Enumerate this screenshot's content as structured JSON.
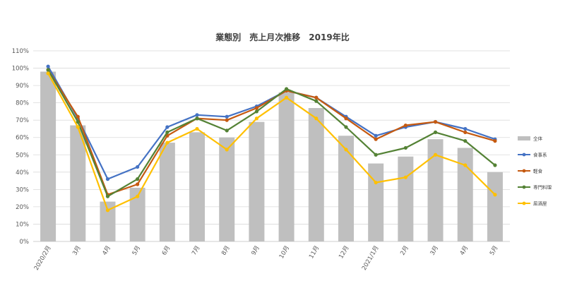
{
  "chart_data": {
    "type": "bar",
    "title": "業態別　売上月次推移　2019年比",
    "xlabel": "",
    "ylabel": "",
    "ylim": [
      0,
      110
    ],
    "ytick_step": 10,
    "yticks": [
      "0%",
      "10%",
      "20%",
      "30%",
      "40%",
      "50%",
      "60%",
      "70%",
      "80%",
      "90%",
      "100%",
      "110%"
    ],
    "grid": true,
    "legend_position": "right",
    "categories": [
      "2020/2月",
      "3月",
      "4月",
      "5月",
      "6月",
      "7月",
      "8月",
      "9月",
      "10月",
      "11月",
      "12月",
      "2021/1月",
      "2月",
      "3月",
      "4月",
      "5月"
    ],
    "series": [
      {
        "name": "全体",
        "kind": "bar",
        "color": "#bfbfbf",
        "values": [
          98,
          67,
          23,
          31,
          57,
          63,
          60,
          69,
          86,
          77,
          61,
          45,
          49,
          59,
          54,
          40
        ]
      },
      {
        "name": "食事系",
        "kind": "line",
        "color": "#4472c4",
        "values": [
          101,
          71,
          36,
          43,
          66,
          73,
          72,
          78,
          87,
          83,
          72,
          61,
          66,
          69,
          65,
          59
        ]
      },
      {
        "name": "軽食",
        "kind": "line",
        "color": "#c55a11",
        "values": [
          99,
          72,
          27,
          33,
          61,
          71,
          70,
          77,
          87,
          83,
          71,
          59,
          67,
          69,
          63,
          58
        ]
      },
      {
        "name": "専門料理",
        "kind": "line",
        "color": "#548235",
        "values": [
          99,
          69,
          26,
          36,
          63,
          71,
          64,
          75,
          88,
          81,
          66,
          50,
          54,
          63,
          58,
          44
        ]
      },
      {
        "name": "居酒屋",
        "kind": "line",
        "color": "#ffc000",
        "values": [
          97,
          66,
          18,
          26,
          57,
          65,
          53,
          71,
          83,
          71,
          53,
          34,
          37,
          50,
          44,
          27
        ]
      }
    ]
  }
}
